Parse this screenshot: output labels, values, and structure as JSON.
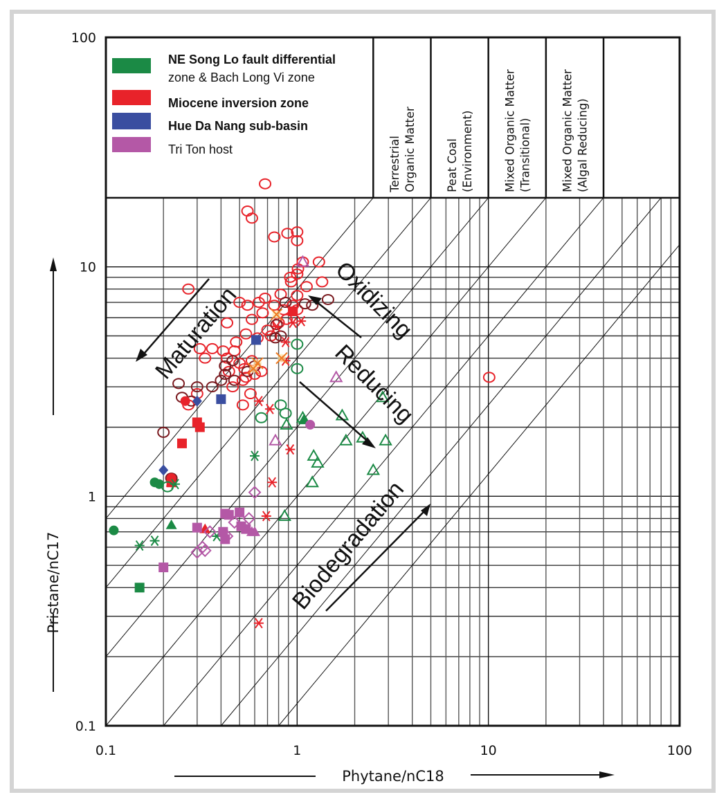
{
  "chart_data": {
    "type": "scatter",
    "title": "",
    "xlabel": "Phytane/nC18",
    "ylabel": "Pristane/nC17",
    "xscale": "log",
    "yscale": "log",
    "xlim": [
      0.1,
      100
    ],
    "ylim": [
      0.1,
      100
    ],
    "x_ticks": [
      "0.1",
      "1",
      "10",
      "100"
    ],
    "y_ticks": [
      "0.1",
      "1",
      "10",
      "100"
    ],
    "grid": true,
    "legend_position": "top-left",
    "legend": [
      {
        "label_line1": "NE Song Lo fault differential",
        "label_line2": "zone & Bach Long Vi zone",
        "color": "#1b8a45",
        "bold": true
      },
      {
        "label_line1": "Miocene inversion zone",
        "label_line2": "",
        "color": "#e8232a",
        "bold": true
      },
      {
        "label_line1": "Hue Da Nang sub-basin",
        "label_line2": "",
        "color": "#3a4ea0",
        "bold": true
      },
      {
        "label_line1": "Tri Ton host",
        "label_line2": "",
        "color": "#b458a6",
        "bold": false
      }
    ],
    "header_zones": [
      {
        "x_from": 2.5,
        "x_to": 5,
        "line1": "Terrestrial",
        "line2": "Organic Matter"
      },
      {
        "x_from": 5,
        "x_to": 10,
        "line1": "Peat Coal",
        "line2": "(Environment)"
      },
      {
        "x_from": 10,
        "x_to": 20,
        "line1": "Mixed Organic Matter",
        "line2": "(Transitional)"
      },
      {
        "x_from": 20,
        "x_to": 40,
        "line1": "Mixed Organic Matter",
        "line2": "(Algal Reducing)"
      },
      {
        "x_from": 40,
        "x_to": 100,
        "line1": "",
        "line2": ""
      }
    ],
    "header_bottom_y": 20,
    "ratio_lines": [
      0.125,
      0.25,
      0.5,
      1,
      2,
      4,
      8
    ],
    "annotations": [
      {
        "text": "Maturation",
        "arrow": "down-left"
      },
      {
        "text": "Oxidizing",
        "arrow": "up-left"
      },
      {
        "text": "Reducing",
        "arrow": "down-right"
      },
      {
        "text": "Biodegradation",
        "arrow": "up-right"
      }
    ],
    "series": [
      {
        "name": "Miocene inversion zone - open circle",
        "color": "#e8232a",
        "marker": "circle-open",
        "points": [
          [
            0.68,
            23
          ],
          [
            0.55,
            17.5
          ],
          [
            0.58,
            16.3
          ],
          [
            0.89,
            14
          ],
          [
            1.0,
            14.2
          ],
          [
            1.0,
            13
          ],
          [
            0.76,
            13.5
          ],
          [
            1.07,
            10.5
          ],
          [
            1.01,
            9.8
          ],
          [
            1.0,
            9.3
          ],
          [
            0.92,
            9.0
          ],
          [
            0.93,
            8.6
          ],
          [
            1.3,
            10.5
          ],
          [
            1.35,
            8.6
          ],
          [
            1.12,
            8.2
          ],
          [
            0.27,
            8.0
          ],
          [
            1.0,
            7.5
          ],
          [
            0.82,
            7.6
          ],
          [
            0.68,
            7.3
          ],
          [
            0.63,
            7.0
          ],
          [
            0.76,
            6.8
          ],
          [
            0.55,
            6.8
          ],
          [
            0.5,
            7.0
          ],
          [
            0.85,
            6.5
          ],
          [
            0.66,
            6.3
          ],
          [
            0.58,
            5.9
          ],
          [
            0.8,
            5.7
          ],
          [
            0.43,
            5.7
          ],
          [
            0.54,
            5.1
          ],
          [
            0.7,
            5.3
          ],
          [
            0.62,
            4.9
          ],
          [
            0.73,
            5.0
          ],
          [
            0.48,
            4.7
          ],
          [
            0.41,
            4.3
          ],
          [
            0.36,
            4.4
          ],
          [
            0.31,
            4.4
          ],
          [
            0.47,
            4.3
          ],
          [
            0.33,
            4.0
          ],
          [
            0.43,
            4.0
          ],
          [
            0.58,
            3.9
          ],
          [
            0.53,
            3.6
          ],
          [
            0.5,
            3.8
          ],
          [
            0.6,
            3.4
          ],
          [
            0.65,
            3.5
          ],
          [
            0.54,
            3.3
          ],
          [
            0.44,
            3.5
          ],
          [
            0.52,
            3.2
          ],
          [
            0.46,
            3.0
          ],
          [
            0.57,
            2.8
          ],
          [
            0.52,
            2.5
          ],
          [
            0.3,
            2.8
          ],
          [
            0.27,
            2.5
          ],
          [
            10.1,
            3.3
          ],
          [
            1.0,
            6.5
          ],
          [
            0.88,
            5.9
          ],
          [
            0.95,
            6.8
          ]
        ]
      },
      {
        "name": "Miocene inversion zone - dark open circle",
        "color": "#7a1a1f",
        "marker": "circle-open",
        "points": [
          [
            1.45,
            7.2
          ],
          [
            1.2,
            6.8
          ],
          [
            0.87,
            7.0
          ],
          [
            0.82,
            5.0
          ],
          [
            0.77,
            4.9
          ],
          [
            0.6,
            3.7
          ],
          [
            0.42,
            3.4
          ],
          [
            0.4,
            3.2
          ],
          [
            0.42,
            3.7
          ],
          [
            0.46,
            3.9
          ],
          [
            0.36,
            3.0
          ],
          [
            0.3,
            3.0
          ],
          [
            0.24,
            3.1
          ],
          [
            0.25,
            2.7
          ],
          [
            0.2,
            1.9
          ],
          [
            0.28,
            2.6
          ],
          [
            0.22,
            1.2
          ],
          [
            0.47,
            3.2
          ],
          [
            0.55,
            3.5
          ],
          [
            1.1,
            6.9
          ],
          [
            0.78,
            5.6
          ]
        ]
      },
      {
        "name": "Miocene inversion zone - filled square",
        "color": "#e8232a",
        "marker": "square",
        "points": [
          [
            0.95,
            6.4
          ],
          [
            0.3,
            2.1
          ],
          [
            0.31,
            2.0
          ],
          [
            0.25,
            1.7
          ],
          [
            0.22,
            1.15
          ]
        ]
      },
      {
        "name": "Miocene inversion zone - filled circle",
        "color": "#e8232a",
        "marker": "circle",
        "points": [
          [
            0.26,
            2.6
          ],
          [
            0.22,
            1.2
          ]
        ]
      },
      {
        "name": "Miocene inversion zone - filled triangle",
        "color": "#e8232a",
        "marker": "triangle",
        "points": [
          [
            0.22,
            1.15
          ],
          [
            0.33,
            0.72
          ]
        ]
      },
      {
        "name": "Miocene inversion zone - asterisk",
        "color": "#e8232a",
        "marker": "asterisk",
        "points": [
          [
            1.05,
            5.8
          ],
          [
            0.95,
            5.7
          ],
          [
            0.87,
            4.7
          ],
          [
            0.87,
            3.9
          ],
          [
            0.63,
            2.6
          ],
          [
            0.72,
            2.4
          ],
          [
            0.92,
            1.6
          ],
          [
            0.74,
            1.15
          ],
          [
            0.69,
            0.82
          ],
          [
            0.63,
            0.28
          ],
          [
            0.78,
            5.5
          ]
        ]
      },
      {
        "name": "Miocene inversion zone - x cross",
        "color": "#f07a20",
        "marker": "cross",
        "points": [
          [
            0.78,
            6.2
          ],
          [
            0.83,
            4.0
          ],
          [
            0.62,
            3.8
          ],
          [
            0.59,
            3.6
          ]
        ]
      },
      {
        "name": "NE Song Lo & Bach Long Vi - open triangle",
        "color": "#1b8a45",
        "marker": "triangle-open",
        "points": [
          [
            2.8,
            2.7
          ],
          [
            1.72,
            2.25
          ],
          [
            1.07,
            2.2
          ],
          [
            0.88,
            2.05
          ],
          [
            1.8,
            1.75
          ],
          [
            2.2,
            1.8
          ],
          [
            2.9,
            1.75
          ],
          [
            1.22,
            1.5
          ],
          [
            1.28,
            1.4
          ],
          [
            1.2,
            1.15
          ],
          [
            2.5,
            1.3
          ],
          [
            0.86,
            0.82
          ]
        ]
      },
      {
        "name": "NE Song Lo & Bach Long Vi - filled triangle",
        "color": "#1b8a45",
        "marker": "triangle",
        "points": [
          [
            0.22,
            0.75
          ],
          [
            1.08,
            2.15
          ]
        ]
      },
      {
        "name": "NE Song Lo & Bach Long Vi - open circle",
        "color": "#1b8a45",
        "marker": "circle-open",
        "points": [
          [
            1.0,
            4.6
          ],
          [
            0.82,
            2.5
          ],
          [
            0.87,
            2.3
          ],
          [
            0.65,
            2.2
          ],
          [
            1.0,
            3.6
          ],
          [
            0.21,
            1.1
          ]
        ]
      },
      {
        "name": "NE Song Lo & Bach Long Vi - filled circle",
        "color": "#1b8a45",
        "marker": "circle",
        "points": [
          [
            0.11,
            0.71
          ],
          [
            0.18,
            1.15
          ],
          [
            0.19,
            1.13
          ]
        ]
      },
      {
        "name": "NE Song Lo & Bach Long Vi - asterisk",
        "color": "#1b8a45",
        "marker": "asterisk",
        "points": [
          [
            0.6,
            1.5
          ],
          [
            0.23,
            1.13
          ],
          [
            0.15,
            0.61
          ],
          [
            0.18,
            0.64
          ],
          [
            0.38,
            0.67
          ]
        ]
      },
      {
        "name": "NE Song Lo & Bach Long Vi - filled square",
        "color": "#1b8a45",
        "marker": "square",
        "points": [
          [
            0.15,
            0.4
          ]
        ]
      },
      {
        "name": "Hue Da Nang sub-basin - filled square",
        "color": "#3a4ea0",
        "marker": "square",
        "points": [
          [
            0.61,
            4.8
          ],
          [
            0.4,
            2.65
          ]
        ]
      },
      {
        "name": "Hue Da Nang sub-basin - filled diamond",
        "color": "#3a4ea0",
        "marker": "diamond",
        "points": [
          [
            0.3,
            2.6
          ],
          [
            0.2,
            1.3
          ]
        ]
      },
      {
        "name": "Tri Ton host - filled square",
        "color": "#b458a6",
        "marker": "square",
        "points": [
          [
            0.3,
            0.73
          ],
          [
            0.42,
            0.84
          ],
          [
            0.44,
            0.83
          ],
          [
            0.5,
            0.85
          ],
          [
            0.41,
            0.7
          ],
          [
            0.42,
            0.65
          ],
          [
            0.51,
            0.74
          ],
          [
            0.2,
            0.49
          ],
          [
            0.54,
            0.72
          ]
        ]
      },
      {
        "name": "Tri Ton host - filled triangle",
        "color": "#b458a6",
        "marker": "triangle",
        "points": [
          [
            0.58,
            0.7
          ],
          [
            0.6,
            0.7
          ]
        ]
      },
      {
        "name": "Tri Ton host - open diamond",
        "color": "#b458a6",
        "marker": "diamond-open",
        "points": [
          [
            0.6,
            1.04
          ],
          [
            0.56,
            0.8
          ],
          [
            0.47,
            0.77
          ],
          [
            0.43,
            0.67
          ],
          [
            0.32,
            0.6
          ],
          [
            0.3,
            0.57
          ],
          [
            0.33,
            0.58
          ],
          [
            0.35,
            0.7
          ]
        ]
      },
      {
        "name": "Tri Ton host - open triangle",
        "color": "#b458a6",
        "marker": "triangle-open",
        "points": [
          [
            1.07,
            10.5
          ],
          [
            1.6,
            3.3
          ],
          [
            0.77,
            1.75
          ]
        ]
      },
      {
        "name": "Tri Ton host - filled circle",
        "color": "#b458a6",
        "marker": "circle",
        "points": [
          [
            1.17,
            2.05
          ]
        ]
      }
    ]
  }
}
